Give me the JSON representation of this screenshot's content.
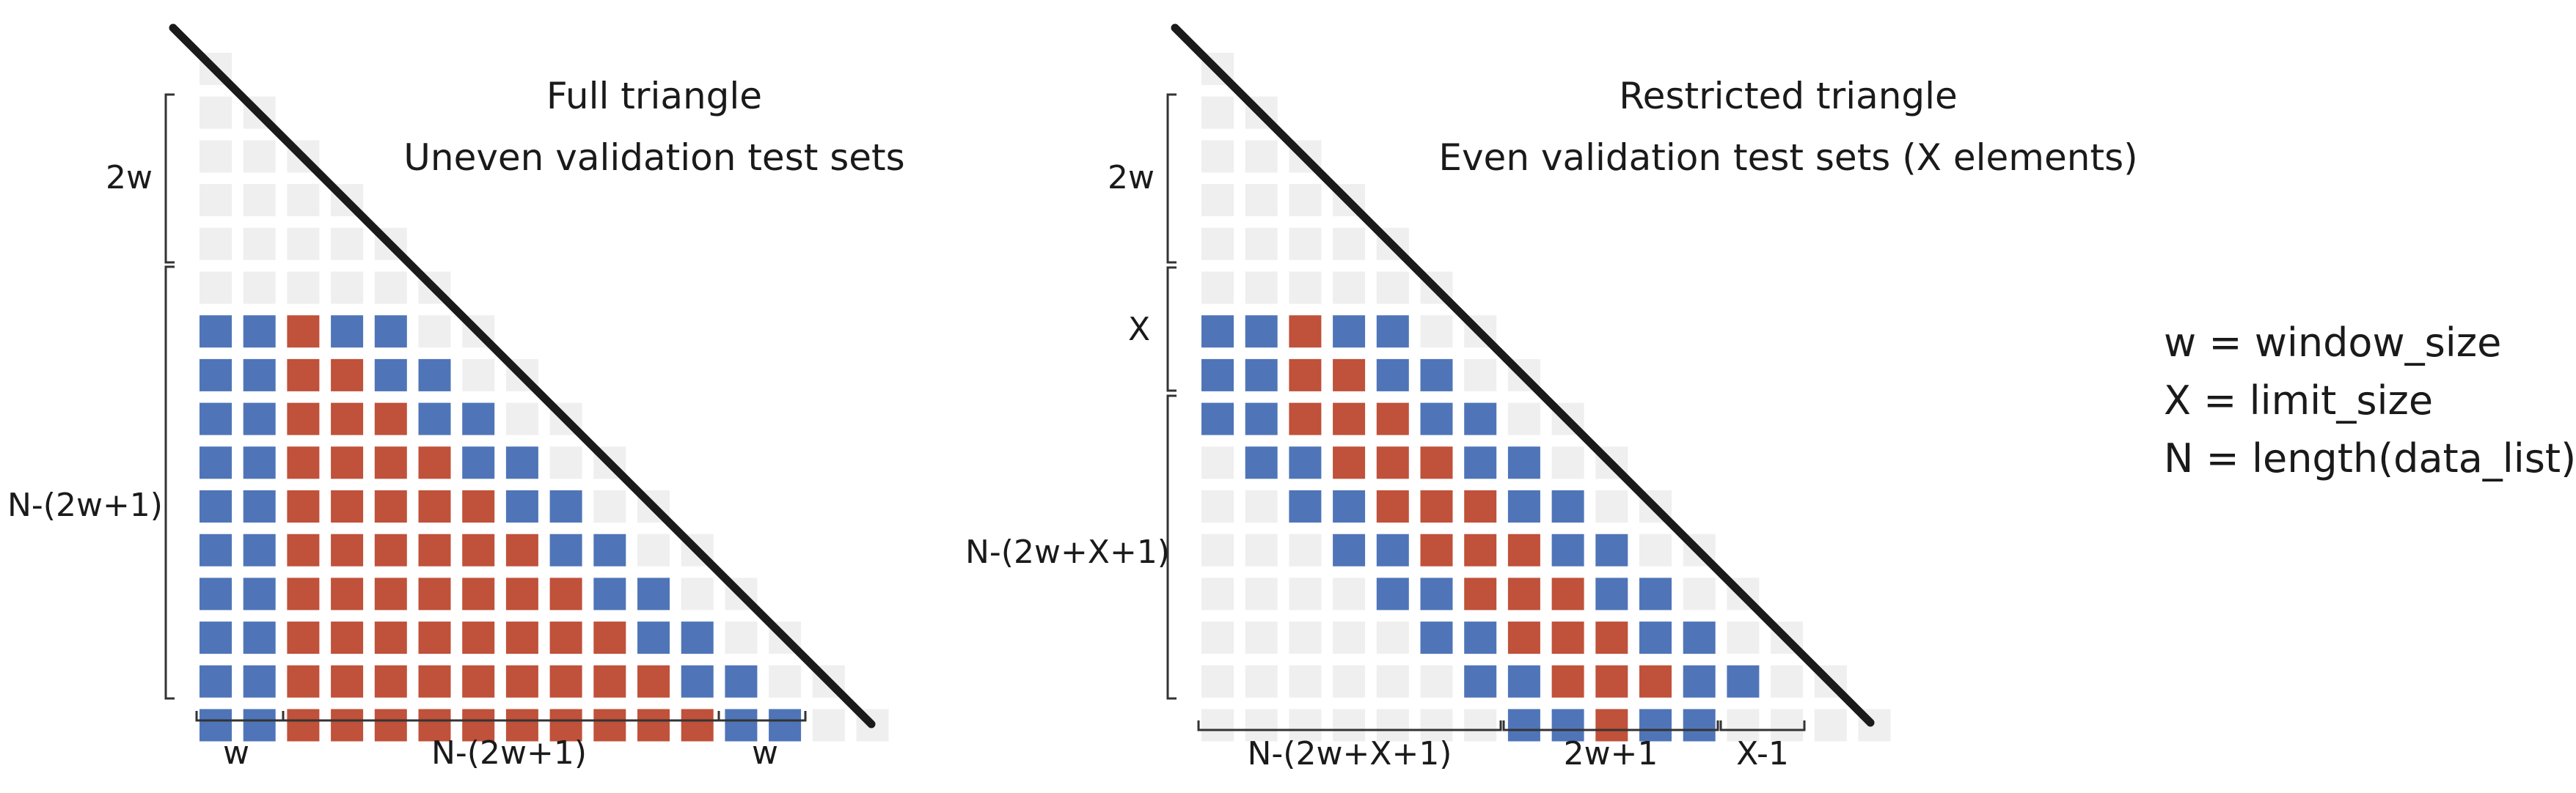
{
  "colors": {
    "blue": "#4f75b8",
    "red": "#c0513a",
    "gray": "#efefef",
    "line": "#1a1a1a",
    "bracket": "#333333"
  },
  "legend": [
    "w = window_size",
    "X = limit_size",
    "N = length(data_list)"
  ],
  "full_triangle": {
    "title_line1": "Full triangle",
    "title_line2": "Uneven validation test sets",
    "label_2w": "2w",
    "label_n": "N-(2w+1)",
    "bottom_w_left": "w",
    "bottom_n": "N-(2w+1)",
    "bottom_w_right": "w",
    "rows": [
      "G",
      "GG",
      "GGG",
      "GGGG",
      "GGGGG",
      "GGGGGG",
      "BBRBBGG",
      "BBRRBBGG",
      "BBRRRBBGG",
      "BBRRRRBBGG",
      "BBRRRRRBBGG",
      "BBRRRRRRBBGG",
      "BBRRRRRRRBBGG",
      "BBRRRRRRRRBBGG",
      "BBRRRRRRRRRBBGG",
      "BBRRRRRRRRRRBBGG"
    ]
  },
  "restricted_triangle": {
    "title_line1": "Restricted triangle",
    "title_line2": "Even validation test sets (X elements)",
    "label_2w": "2w",
    "label_x": "X",
    "label_n": "N-(2w+X+1)",
    "bottom_n": "N-(2w+X+1)",
    "bottom_2w1": "2w+1",
    "bottom_x1": "X-1",
    "rows": [
      "G",
      "GG",
      "GGG",
      "GGGG",
      "GGGGG",
      "GGGGGG",
      "BBRBBGG",
      "BBRRBBGG",
      "BBRRRBBGG",
      "GBBRRRBBGG",
      "GGBBRRRBBGG",
      "GGGBBRRRBBGG",
      "GGGGBBRRRBBGG",
      "GGGGGBBRRRBBGG",
      "GGGGGGBBRRRBBGG",
      "GGGGGGGBBRBBGGGG"
    ]
  }
}
